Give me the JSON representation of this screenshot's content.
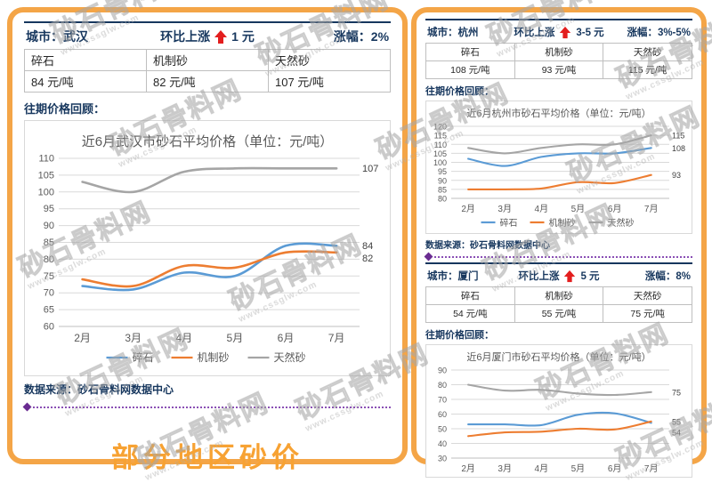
{
  "colors": {
    "border_orange": "#F4A547",
    "navy": "#17375E",
    "red_arrow": "#E31E1E",
    "purple_divider": "#6A2C91",
    "footer_orange": "#F7A233",
    "crushed_blue": "#5B9BD5",
    "machine_orange": "#ED7D31",
    "natural_gray": "#A5A5A5"
  },
  "watermark": {
    "name": "砂石骨料网",
    "url": "www.cssglw.com"
  },
  "labels": {
    "city_prefix": "城市：",
    "rise_label": "环比上涨",
    "gain_prefix": "涨幅：",
    "review": "往期价格回顾：",
    "source": "数据来源：砂石骨料网数据中心"
  },
  "footer_title": "部分地区砂价",
  "panels": [
    {
      "city": "武汉",
      "rise": "1 元",
      "gain": "2%",
      "columns": [
        "碎石",
        "机制砂",
        "天然砂"
      ],
      "prices": [
        "84 元/吨",
        "82 元/吨",
        "107 元/吨"
      ]
    },
    {
      "city": "杭州",
      "rise": "3-5 元",
      "gain": "3%-5%",
      "columns": [
        "碎石",
        "机制砂",
        "天然砂"
      ],
      "prices": [
        "108 元/吨",
        "93 元/吨",
        "115 元/吨"
      ]
    },
    {
      "city": "厦门",
      "rise": "5 元",
      "gain": "8%",
      "columns": [
        "碎石",
        "机制砂",
        "天然砂"
      ],
      "prices": [
        "54 元/吨",
        "55 元/吨",
        "75 元/吨"
      ]
    }
  ],
  "chart_data": [
    {
      "type": "line",
      "title": "近6月武汉市砂石平均价格（单位：元/吨）",
      "categories": [
        "2月",
        "3月",
        "4月",
        "5月",
        "6月",
        "7月"
      ],
      "ylim": [
        60,
        110
      ],
      "ystep": 5,
      "grid": true,
      "legend": true,
      "legend_position": "bottom",
      "series": [
        {
          "name": "碎石",
          "color": "#5B9BD5",
          "values": [
            72,
            71,
            76,
            75,
            84,
            84
          ],
          "end_label": "84"
        },
        {
          "name": "机制砂",
          "color": "#ED7D31",
          "values": [
            74,
            72,
            78,
            77.5,
            82,
            82
          ],
          "end_label": "82"
        },
        {
          "name": "天然砂",
          "color": "#A5A5A5",
          "values": [
            103,
            100,
            106,
            107,
            107,
            107
          ],
          "end_label": "107"
        }
      ]
    },
    {
      "type": "line",
      "title": "近6月杭州市砂石平均价格（单位：元/吨）",
      "categories": [
        "2月",
        "3月",
        "4月",
        "5月",
        "6月",
        "7月"
      ],
      "ylim": [
        80,
        120
      ],
      "ystep": 5,
      "grid": true,
      "legend": true,
      "legend_position": "bottom",
      "series": [
        {
          "name": "碎石",
          "color": "#5B9BD5",
          "values": [
            102,
            98,
            103,
            105,
            105,
            108
          ],
          "end_label": "108"
        },
        {
          "name": "机制砂",
          "color": "#ED7D31",
          "values": [
            85,
            85,
            85.5,
            89,
            88.5,
            93
          ],
          "end_label": "93"
        },
        {
          "name": "天然砂",
          "color": "#A5A5A5",
          "values": [
            108,
            105,
            108,
            110,
            110,
            115
          ],
          "end_label": "115"
        }
      ]
    },
    {
      "type": "line",
      "title": "近6月厦门市砂石平均价格（单位：元/吨）",
      "categories": [
        "2月",
        "3月",
        "4月",
        "5月",
        "6月",
        "7月"
      ],
      "ylim": [
        30,
        90
      ],
      "ystep": 10,
      "grid": true,
      "legend": false,
      "legend_position": "none",
      "series": [
        {
          "name": "碎石",
          "color": "#5B9BD5",
          "values": [
            53,
            53,
            52.5,
            59.5,
            60.5,
            54
          ],
          "end_label": "54"
        },
        {
          "name": "机制砂",
          "color": "#ED7D31",
          "values": [
            45,
            47.5,
            48,
            50,
            49.5,
            55
          ],
          "end_label": "55"
        },
        {
          "name": "天然砂",
          "color": "#A5A5A5",
          "values": [
            80,
            76,
            76.5,
            74,
            73,
            75
          ],
          "end_label": "75"
        }
      ]
    }
  ]
}
